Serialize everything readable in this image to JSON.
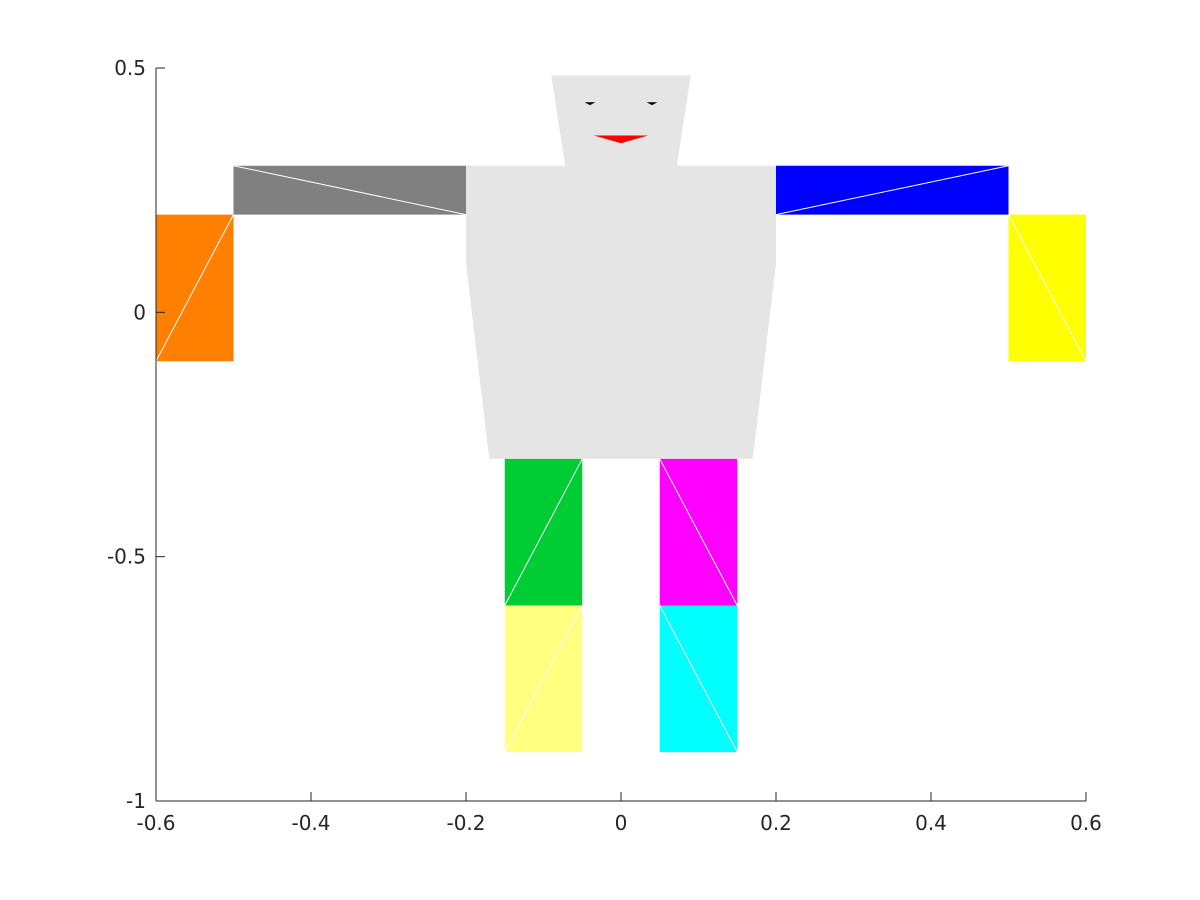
{
  "chart_data": {
    "type": "patch",
    "title": "",
    "xlabel": "",
    "ylabel": "",
    "xlim": [
      -0.6,
      0.6
    ],
    "ylim": [
      -1,
      0.5
    ],
    "grid": false,
    "box": false,
    "xticks": [
      {
        "value": -0.6,
        "label": "-0.6"
      },
      {
        "value": -0.4,
        "label": "-0.4"
      },
      {
        "value": -0.2,
        "label": "-0.2"
      },
      {
        "value": 0,
        "label": "0"
      },
      {
        "value": 0.2,
        "label": "0.2"
      },
      {
        "value": 0.4,
        "label": "0.4"
      },
      {
        "value": 0.6,
        "label": "0.6"
      }
    ],
    "yticks": [
      {
        "value": -1,
        "label": "-1"
      },
      {
        "value": -0.5,
        "label": "-0.5"
      },
      {
        "value": 0,
        "label": "0"
      },
      {
        "value": 0.5,
        "label": "0.5"
      }
    ],
    "patches": [
      {
        "name": "torso-patch",
        "color": "#e5e5e5",
        "points": [
          [
            -0.2,
            0.3
          ],
          [
            0.2,
            0.3
          ],
          [
            0.2,
            0.1
          ],
          [
            0.17,
            -0.3
          ],
          [
            -0.17,
            -0.3
          ],
          [
            -0.2,
            0.1
          ]
        ]
      },
      {
        "name": "head-patch",
        "color": "#e5e5e5",
        "points": [
          [
            -0.09,
            0.485
          ],
          [
            0.09,
            0.485
          ],
          [
            0.072,
            0.3
          ],
          [
            -0.072,
            0.3
          ]
        ]
      },
      {
        "name": "left-eye-patch",
        "color": "#000000",
        "points": [
          [
            -0.047,
            0.43
          ],
          [
            -0.033,
            0.43
          ],
          [
            -0.04,
            0.424
          ]
        ]
      },
      {
        "name": "right-eye-patch",
        "color": "#000000",
        "points": [
          [
            0.033,
            0.43
          ],
          [
            0.047,
            0.43
          ],
          [
            0.04,
            0.424
          ]
        ]
      },
      {
        "name": "mouth-patch",
        "color": "#ff0000",
        "points": [
          [
            -0.035,
            0.362
          ],
          [
            0.035,
            0.362
          ],
          [
            0,
            0.346
          ]
        ]
      },
      {
        "name": "left-upper-arm-patch",
        "color": "#808080",
        "points": [
          [
            -0.5,
            0.3
          ],
          [
            -0.2,
            0.3
          ],
          [
            -0.2,
            0.2
          ],
          [
            -0.5,
            0.2
          ]
        ],
        "diagonal": [
          [
            -0.5,
            0.3
          ],
          [
            -0.2,
            0.2
          ]
        ]
      },
      {
        "name": "left-forearm-patch",
        "color": "#ff8000",
        "points": [
          [
            -0.6,
            0.2
          ],
          [
            -0.5,
            0.2
          ],
          [
            -0.5,
            -0.1
          ],
          [
            -0.6,
            -0.1
          ]
        ],
        "diagonal": [
          [
            -0.5,
            0.2
          ],
          [
            -0.6,
            -0.1
          ]
        ]
      },
      {
        "name": "right-upper-arm-patch",
        "color": "#0000ff",
        "points": [
          [
            0.2,
            0.3
          ],
          [
            0.5,
            0.3
          ],
          [
            0.5,
            0.2
          ],
          [
            0.2,
            0.2
          ]
        ],
        "diagonal": [
          [
            0.5,
            0.3
          ],
          [
            0.2,
            0.2
          ]
        ]
      },
      {
        "name": "right-forearm-patch",
        "color": "#ffff00",
        "points": [
          [
            0.5,
            0.2
          ],
          [
            0.6,
            0.2
          ],
          [
            0.6,
            -0.1
          ],
          [
            0.5,
            -0.1
          ]
        ],
        "diagonal": [
          [
            0.5,
            0.2
          ],
          [
            0.6,
            -0.1
          ]
        ]
      },
      {
        "name": "left-thigh-patch",
        "color": "#00cc33",
        "points": [
          [
            -0.15,
            -0.3
          ],
          [
            -0.05,
            -0.3
          ],
          [
            -0.05,
            -0.6
          ],
          [
            -0.15,
            -0.6
          ]
        ],
        "diagonal": [
          [
            -0.05,
            -0.3
          ],
          [
            -0.15,
            -0.6
          ]
        ]
      },
      {
        "name": "left-shin-patch",
        "color": "#ffff80",
        "points": [
          [
            -0.15,
            -0.6
          ],
          [
            -0.05,
            -0.6
          ],
          [
            -0.05,
            -0.9
          ],
          [
            -0.15,
            -0.9
          ]
        ],
        "diagonal": [
          [
            -0.05,
            -0.6
          ],
          [
            -0.15,
            -0.9
          ]
        ]
      },
      {
        "name": "right-thigh-patch",
        "color": "#ff00ff",
        "points": [
          [
            0.05,
            -0.3
          ],
          [
            0.15,
            -0.3
          ],
          [
            0.15,
            -0.6
          ],
          [
            0.05,
            -0.6
          ]
        ],
        "diagonal": [
          [
            0.05,
            -0.3
          ],
          [
            0.15,
            -0.6
          ]
        ]
      },
      {
        "name": "right-shin-patch",
        "color": "#00ffff",
        "points": [
          [
            0.05,
            -0.6
          ],
          [
            0.15,
            -0.6
          ],
          [
            0.15,
            -0.9
          ],
          [
            0.05,
            -0.9
          ]
        ],
        "diagonal": [
          [
            0.05,
            -0.6
          ],
          [
            0.15,
            -0.9
          ]
        ]
      }
    ]
  }
}
